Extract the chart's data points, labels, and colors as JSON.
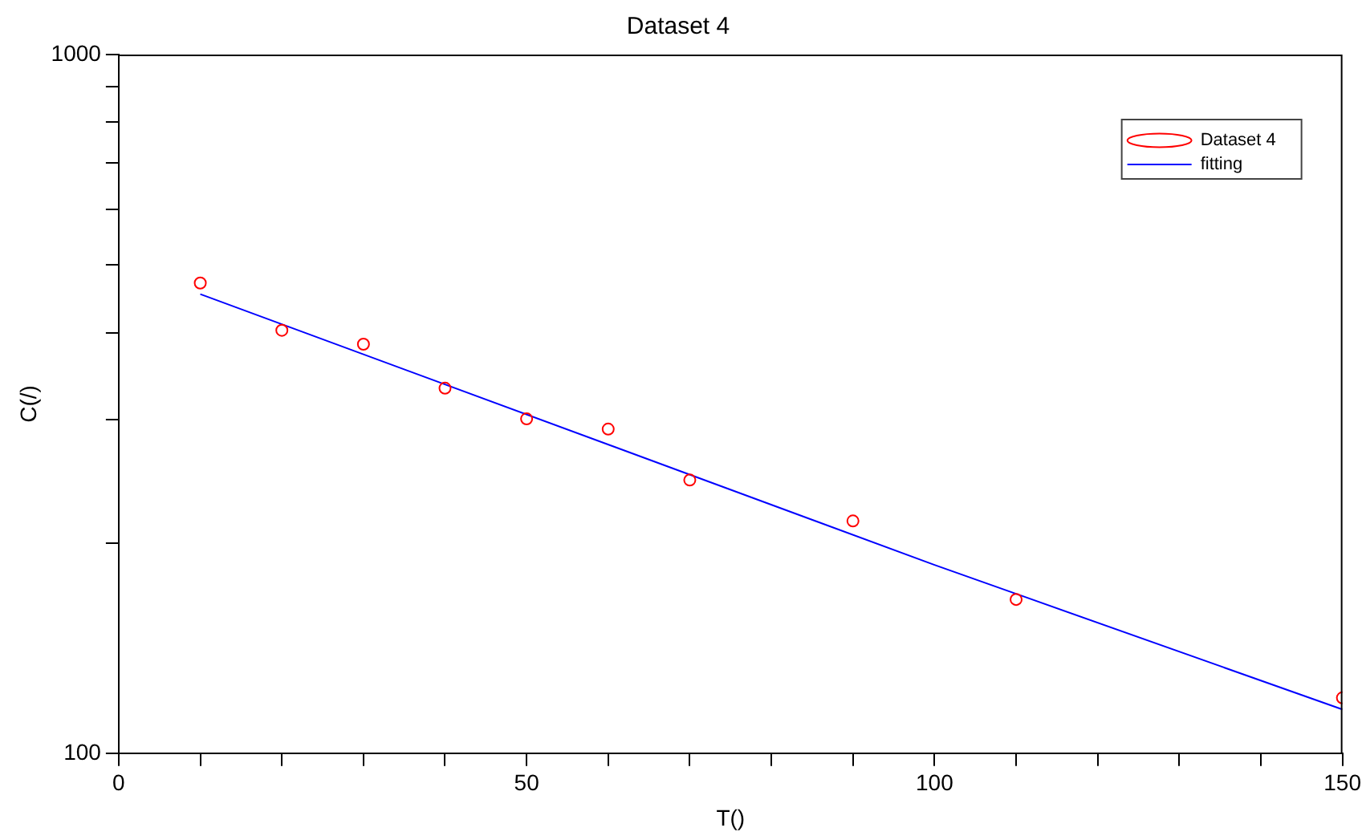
{
  "chart_data": {
    "type": "scatter",
    "title": "Dataset 4",
    "xlabel": "T()",
    "ylabel": "C(/)",
    "log": "y",
    "legend": "top right",
    "grid": false,
    "marker": "circle",
    "xlim": [
      0,
      150
    ],
    "xticks": [
      0,
      {
        "value": 10,
        "label": null
      },
      {
        "value": 20,
        "label": null
      },
      {
        "value": 30,
        "label": null
      },
      {
        "value": 40,
        "label": null
      },
      50,
      {
        "value": 60,
        "label": null
      },
      {
        "value": 70,
        "label": null
      },
      {
        "value": 80,
        "label": null
      },
      {
        "value": 90,
        "label": null
      },
      100,
      {
        "value": 110,
        "label": null
      },
      {
        "value": 120,
        "label": null
      },
      {
        "value": 130,
        "label": null
      },
      {
        "value": 140,
        "label": null
      },
      150
    ],
    "ylim": [
      100,
      1000
    ],
    "yticks": [
      100,
      {
        "value": 200,
        "label": null
      },
      {
        "value": 300,
        "label": null
      },
      {
        "value": 400,
        "label": null
      },
      {
        "value": 500,
        "label": null
      },
      {
        "value": 600,
        "label": null
      },
      {
        "value": 700,
        "label": null
      },
      {
        "value": 800,
        "label": null
      },
      {
        "value": 900,
        "label": null
      },
      1000
    ],
    "series": [
      {
        "name": "Dataset 4",
        "color": "#ff0000",
        "x": [
          10,
          20,
          30,
          40,
          50,
          60,
          70,
          90,
          110,
          150
        ],
        "values": [
          471,
          403,
          385,
          333,
          301,
          291,
          246,
          215,
          166,
          120
        ]
      },
      {
        "name": "fitting",
        "type": "line",
        "marker": "none",
        "line_style": "solid",
        "color": "#0000ff",
        "x": [
          10,
          100,
          150
        ],
        "values": [
          454,
          186,
          115.5
        ]
      }
    ]
  }
}
